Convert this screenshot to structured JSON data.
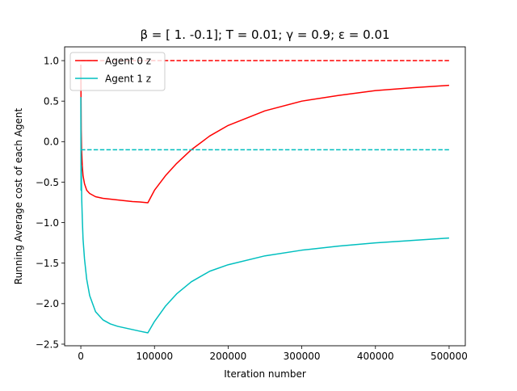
{
  "chart_data": {
    "type": "line",
    "title": "β = [ 1.  -0.1]; T = 0.01; γ = 0.9; ε = 0.01",
    "xlabel": "Iteration number",
    "ylabel": "Running Average cost of each Agent",
    "xlim": [
      -22000,
      522000
    ],
    "ylim": [
      -2.52,
      1.17
    ],
    "grid": false,
    "legend_position": "top-left",
    "xticks": [
      0,
      100000,
      200000,
      300000,
      400000,
      500000
    ],
    "xtick_labels": [
      "0",
      "100000",
      "200000",
      "300000",
      "400000",
      "500000"
    ],
    "yticks": [
      1.0,
      0.5,
      0.0,
      -0.5,
      -1.0,
      -1.5,
      -2.0,
      -2.5
    ],
    "ytick_labels": [
      "1.0",
      "0.5",
      "0.0",
      "−0.5",
      "−1.0",
      "−1.5",
      "−2.0",
      "−2.5"
    ],
    "series": [
      {
        "name": "Agent 0 z",
        "color": "#ff0000",
        "style": "solid",
        "x": [
          0,
          500,
          1000,
          2000,
          3000,
          5000,
          8000,
          12000,
          20000,
          30000,
          40000,
          50000,
          60000,
          70000,
          80000,
          91000,
          100000,
          115000,
          130000,
          150000,
          175000,
          200000,
          250000,
          300000,
          350000,
          400000,
          450000,
          500000
        ],
        "y": [
          0.95,
          0.15,
          -0.1,
          -0.3,
          -0.42,
          -0.52,
          -0.6,
          -0.64,
          -0.68,
          -0.7,
          -0.71,
          -0.72,
          -0.73,
          -0.74,
          -0.745,
          -0.755,
          -0.6,
          -0.42,
          -0.27,
          -0.1,
          0.07,
          0.2,
          0.38,
          0.5,
          0.57,
          0.63,
          0.665,
          0.695
        ]
      },
      {
        "name": "Agent 1 z",
        "color": "#00bfbf",
        "style": "solid",
        "x": [
          0,
          300,
          700,
          1200,
          2000,
          3000,
          5000,
          8000,
          12000,
          20000,
          30000,
          40000,
          50000,
          60000,
          70000,
          80000,
          91000,
          100000,
          115000,
          130000,
          150000,
          175000,
          200000,
          250000,
          300000,
          350000,
          400000,
          450000,
          500000
        ],
        "y": [
          0.55,
          -0.6,
          -0.3,
          -0.7,
          -0.95,
          -1.2,
          -1.45,
          -1.7,
          -1.9,
          -2.1,
          -2.2,
          -2.25,
          -2.28,
          -2.3,
          -2.32,
          -2.34,
          -2.36,
          -2.22,
          -2.03,
          -1.88,
          -1.73,
          -1.6,
          -1.52,
          -1.41,
          -1.34,
          -1.29,
          -1.25,
          -1.22,
          -1.19
        ]
      },
      {
        "color": "#ff0000",
        "style": "dashed",
        "x": [
          0,
          500000
        ],
        "y": [
          1.0,
          1.0
        ]
      },
      {
        "color": "#00bfbf",
        "style": "dashed",
        "x": [
          0,
          500000
        ],
        "y": [
          -0.1,
          -0.1
        ]
      }
    ]
  }
}
